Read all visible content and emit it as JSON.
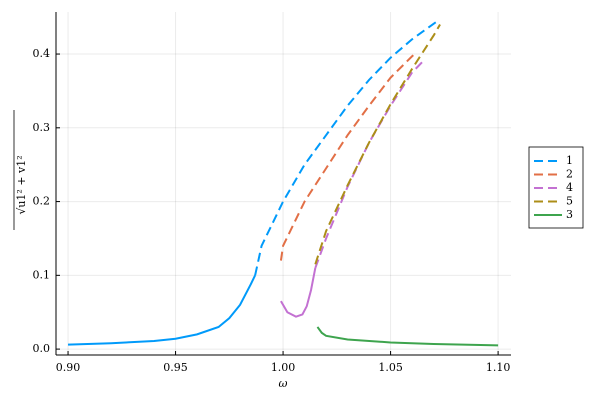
{
  "chart_data": {
    "type": "line",
    "x_label": "ω",
    "y_label": "√u1² + v1²",
    "xlim": [
      0.8944,
      1.106
    ],
    "ylim": [
      -0.008,
      0.457
    ],
    "xticks": [
      {
        "value": 0.9,
        "label": "0.90"
      },
      0.95,
      {
        "value": 1.0,
        "label": "1.00"
      },
      1.05,
      {
        "value": 1.1,
        "label": "1.10"
      }
    ],
    "yticks": [
      {
        "value": 0,
        "label": "0.0"
      },
      0.1,
      0.2,
      0.3,
      0.4
    ],
    "grid": true,
    "legend": "right",
    "series": [
      {
        "name": "1",
        "color": "#009AFA",
        "x": [
          0.9,
          0.92,
          0.94,
          0.95,
          0.96,
          0.97,
          0.975,
          0.98,
          0.985,
          0.987,
          0.99,
          0.995,
          1.0,
          1.01,
          1.02,
          1.03,
          1.04,
          1.05,
          1.06,
          1.07,
          1.072
        ],
        "values": [
          0.006,
          0.008,
          0.011,
          0.014,
          0.02,
          0.03,
          0.042,
          0.06,
          0.088,
          0.1,
          0.14,
          0.17,
          0.2,
          0.25,
          0.29,
          0.33,
          0.365,
          0.395,
          0.42,
          0.441,
          0.445
        ],
        "styles": [
          "solid",
          "solid",
          "solid",
          "solid",
          "solid",
          "solid",
          "solid",
          "solid",
          "solid",
          "solid",
          "dash",
          "dash",
          "dash",
          "dash",
          "dash",
          "dash",
          "dash",
          "dash",
          "dash",
          "dash",
          "dash"
        ]
      },
      {
        "name": "2",
        "color": "#E26F46",
        "x": [
          0.999,
          1.0,
          1.01,
          1.02,
          1.03,
          1.04,
          1.05,
          1.06,
          1.062
        ],
        "values": [
          0.12,
          0.14,
          0.2,
          0.245,
          0.29,
          0.33,
          0.368,
          0.397,
          0.402
        ],
        "styles": [
          "dash",
          "dash",
          "dash",
          "dash",
          "dash",
          "dash",
          "dash",
          "dash",
          "dash"
        ]
      },
      {
        "name": "4",
        "color": "#C371D2",
        "x": [
          0.999,
          1.002,
          1.006,
          1.009,
          1.011,
          1.013,
          1.015,
          1.02,
          1.03,
          1.04,
          1.05,
          1.06,
          1.065
        ],
        "values": [
          0.065,
          0.05,
          0.044,
          0.047,
          0.058,
          0.08,
          0.11,
          0.15,
          0.22,
          0.28,
          0.33,
          0.375,
          0.39
        ],
        "styles": [
          "solid",
          "solid",
          "solid",
          "solid",
          "solid",
          "solid",
          "solid",
          "dash",
          "dash",
          "dash",
          "dash",
          "dash",
          "dash"
        ]
      },
      {
        "name": "5",
        "color": "#AC8E18",
        "x": [
          1.015,
          1.02,
          1.03,
          1.04,
          1.05,
          1.06,
          1.07,
          1.073
        ],
        "values": [
          0.115,
          0.16,
          0.222,
          0.28,
          0.332,
          0.38,
          0.425,
          0.44
        ],
        "styles": [
          "dash",
          "dash",
          "dash",
          "dash",
          "dash",
          "dash",
          "dash",
          "dash"
        ]
      },
      {
        "name": "3",
        "color": "#3EA44E",
        "x": [
          1.016,
          1.018,
          1.02,
          1.03,
          1.05,
          1.07,
          1.1
        ],
        "values": [
          0.03,
          0.022,
          0.018,
          0.013,
          0.009,
          0.007,
          0.005
        ],
        "styles": [
          "solid",
          "solid",
          "solid",
          "solid",
          "solid",
          "solid",
          "solid"
        ]
      }
    ]
  }
}
